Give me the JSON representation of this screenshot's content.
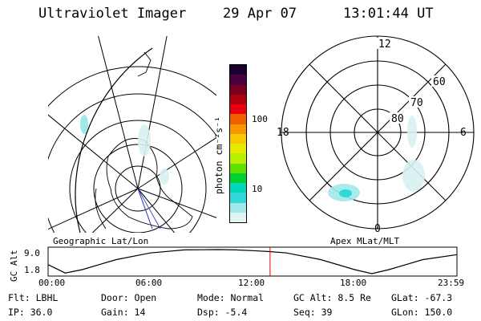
{
  "header": {
    "instrument": "Ultraviolet Imager",
    "date": "29 Apr 07",
    "time": "13:01:44 UT"
  },
  "colorbar": {
    "unit": "photon cm⁻²s⁻¹",
    "ticks": [
      "100",
      "10"
    ],
    "colors": [
      "#1a0030",
      "#4a0040",
      "#7a0020",
      "#b00010",
      "#e80010",
      "#f06000",
      "#f89800",
      "#f8c800",
      "#e8e800",
      "#b8f000",
      "#60e000",
      "#00d030",
      "#00d8b8",
      "#30d8d8",
      "#a0e8e8",
      "#e0f4f4"
    ]
  },
  "geo_map": {
    "label": "Geographic Lat/Lon"
  },
  "polar_plot": {
    "label": "Apex MLat/MLT",
    "mlt_labels": [
      "12",
      "6",
      "0",
      "18"
    ],
    "lat_labels": [
      "60",
      "70",
      "80"
    ]
  },
  "altitude_strip": {
    "ylabel": "GC Alt",
    "y_ticks": [
      "9.0",
      "1.8"
    ],
    "x_ticks": [
      "00:00",
      "06:00",
      "12:00",
      "18:00",
      "23:59"
    ]
  },
  "chart_data": {
    "type": "line",
    "title": "",
    "xlabel": "",
    "ylabel": "GC Alt",
    "x_hours": [
      0,
      1,
      2,
      4,
      6,
      8,
      10,
      11,
      12,
      13,
      14,
      16,
      18,
      19,
      20,
      22,
      24
    ],
    "y_re": [
      4.5,
      2.0,
      3.0,
      6.0,
      8.0,
      8.9,
      9.0,
      8.9,
      8.7,
      8.4,
      8.0,
      6.0,
      3.0,
      1.8,
      3.0,
      6.0,
      7.5
    ],
    "xlim": [
      0,
      24
    ],
    "ylim": [
      1.8,
      9.0
    ],
    "marker_hour": 13.03
  },
  "footer": {
    "flt": "Flt: LBHL",
    "ip": "IP: 36.0",
    "door": "Door: Open",
    "gain": "Gain: 14",
    "mode": "Mode: Normal",
    "dsp": "Dsp:    -5.4",
    "gc_alt": "GC Alt: 8.5 Re",
    "seq": "Seq: 39",
    "glat": "GLat: -67.3",
    "glon": "GLon: 150.0"
  }
}
